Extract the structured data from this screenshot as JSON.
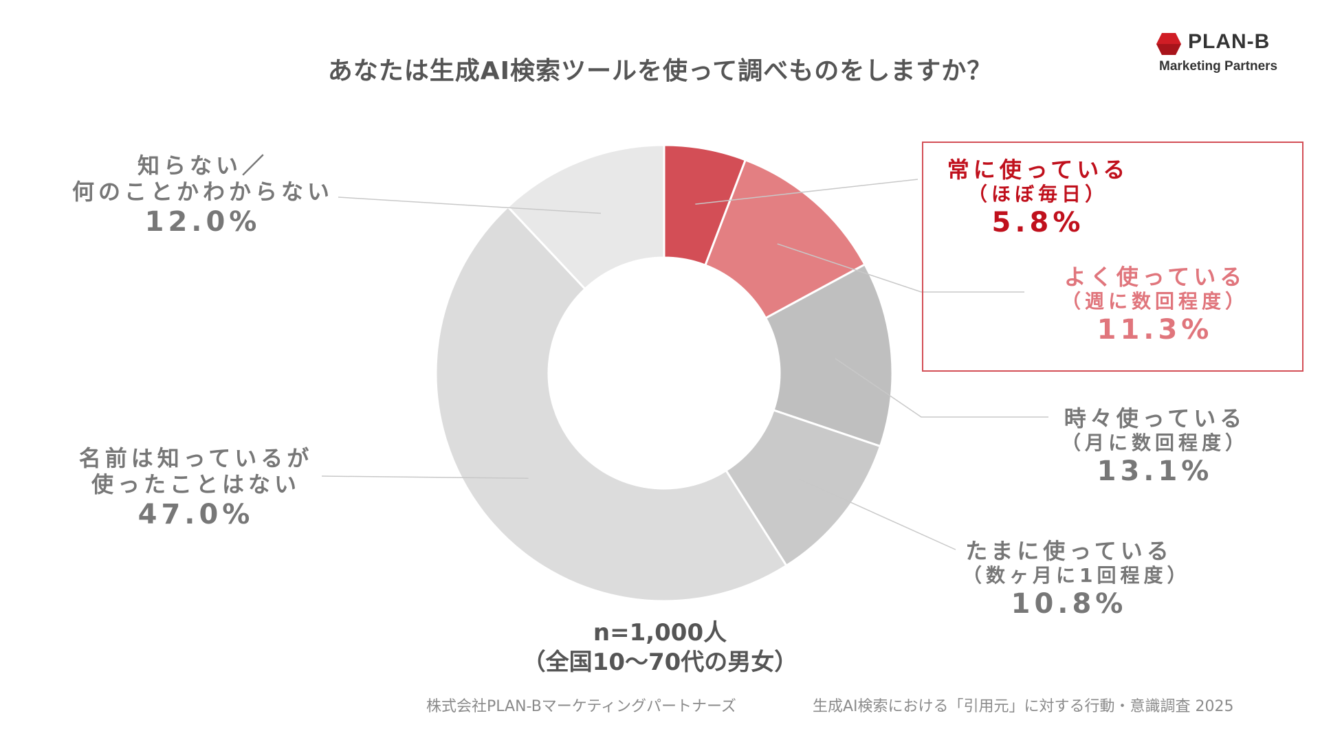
{
  "title": "あなたは生成AI検索ツールを使って調べものをしますか？",
  "logo": {
    "name": "PLAN-B",
    "tagline": "Marketing Partners"
  },
  "colors": {
    "always": "#d34e56",
    "often": "#e37f82",
    "sometimes": "#bfbfbf",
    "occasionally": "#c9c9c9",
    "know_not_used": "#dcdcdc",
    "unknown": "#e8e8e8",
    "highlight_border": "#d34e56",
    "highlight_strong": "#c0101c",
    "highlight_soft": "#e0757c"
  },
  "chart_data": {
    "type": "pie",
    "donut": true,
    "title": "あなたは生成AI検索ツールを使って調べものをしますか？",
    "slices": [
      {
        "label": "常に使っている",
        "sub": "（ほぼ毎日）",
        "value": 5.8,
        "pct_text": "5.8%"
      },
      {
        "label": "よく使っている",
        "sub": "（週に数回程度）",
        "value": 11.3,
        "pct_text": "11.3%"
      },
      {
        "label": "時々使っている",
        "sub": "（月に数回程度）",
        "value": 13.1,
        "pct_text": "13.1%"
      },
      {
        "label": "たまに使っている",
        "sub": "（数ヶ月に1回程度）",
        "value": 10.8,
        "pct_text": "10.8%"
      },
      {
        "label": "名前は知っているが",
        "sub": "使ったことはない",
        "value": 47.0,
        "pct_text": "47.0%"
      },
      {
        "label": "知らない／",
        "sub": "何のことかわからない",
        "value": 12.0,
        "pct_text": "12.0%"
      }
    ]
  },
  "sample": {
    "line1": "n=1,000人",
    "line2": "（全国10〜70代の男女）"
  },
  "footer": {
    "company": "株式会社PLAN-Bマーケティングパートナーズ",
    "survey": "生成AI検索における「引用元」に対する行動・意識調査 2025"
  }
}
